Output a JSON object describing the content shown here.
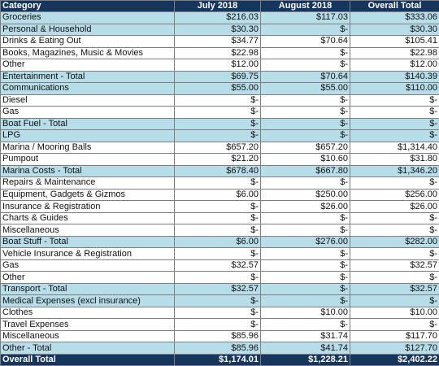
{
  "headers": [
    "Category",
    "July 2018",
    "August 2018",
    "Overall Total"
  ],
  "rows": [
    {
      "hl": true,
      "cells": [
        "Groceries",
        "$216.03",
        "$117.03",
        "$333.06"
      ]
    },
    {
      "hl": true,
      "cells": [
        "Personal & Household",
        "$30.30",
        "$-",
        "$30.30"
      ]
    },
    {
      "hl": false,
      "cells": [
        "Drinks & Eating Out",
        "$34.77",
        "$70.64",
        "$105.41"
      ]
    },
    {
      "hl": false,
      "cells": [
        "Books, Magazines, Music & Movies",
        "$22.98",
        "$-",
        "$22.98"
      ]
    },
    {
      "hl": false,
      "cells": [
        "Other",
        "$12.00",
        "$-",
        "$12.00"
      ]
    },
    {
      "hl": true,
      "cells": [
        "Entertainment - Total",
        "$69.75",
        "$70.64",
        "$140.39"
      ]
    },
    {
      "hl": true,
      "cells": [
        "Communications",
        "$55.00",
        "$55.00",
        "$110.00"
      ]
    },
    {
      "hl": false,
      "cells": [
        "Diesel",
        "$-",
        "$-",
        "$-"
      ]
    },
    {
      "hl": false,
      "cells": [
        "Gas",
        "$-",
        "$-",
        "$-"
      ]
    },
    {
      "hl": true,
      "cells": [
        "Boat Fuel - Total",
        "$-",
        "$-",
        "$-"
      ]
    },
    {
      "hl": true,
      "cells": [
        "LPG",
        "$-",
        "$-",
        "$-"
      ]
    },
    {
      "hl": false,
      "cells": [
        "Marina / Mooring Balls",
        "$657.20",
        "$657.20",
        "$1,314.40"
      ]
    },
    {
      "hl": false,
      "cells": [
        "Pumpout",
        "$21.20",
        "$10.60",
        "$31.80"
      ]
    },
    {
      "hl": true,
      "cells": [
        "Marina Costs - Total",
        "$678.40",
        "$667.80",
        "$1,346.20"
      ]
    },
    {
      "hl": false,
      "cells": [
        "Repairs & Maintenance",
        "$-",
        "$-",
        "$-"
      ]
    },
    {
      "hl": false,
      "cells": [
        "Equipment, Gadgets & Gizmos",
        "$6.00",
        "$250.00",
        "$256.00"
      ]
    },
    {
      "hl": false,
      "cells": [
        "Insurance & Registration",
        "$-",
        "$26.00",
        "$26.00"
      ]
    },
    {
      "hl": false,
      "cells": [
        "Charts & Guides",
        "$-",
        "$-",
        "$-"
      ]
    },
    {
      "hl": false,
      "cells": [
        "Miscellaneous",
        "$-",
        "$-",
        "$-"
      ]
    },
    {
      "hl": true,
      "cells": [
        "Boat Stuff - Total",
        "$6.00",
        "$276.00",
        "$282.00"
      ]
    },
    {
      "hl": false,
      "cells": [
        "Vehicle Insurance & Registration",
        "$-",
        "$-",
        "$-"
      ]
    },
    {
      "hl": false,
      "cells": [
        "Gas",
        "$32.57",
        "$-",
        "$32.57"
      ]
    },
    {
      "hl": false,
      "cells": [
        "Other",
        "$-",
        "$-",
        "$-"
      ]
    },
    {
      "hl": true,
      "cells": [
        "Transport - Total",
        "$32.57",
        "$-",
        "$32.57"
      ]
    },
    {
      "hl": true,
      "cells": [
        "Medical Expenses (excl insurance)",
        "$-",
        "$-",
        "$-"
      ]
    },
    {
      "hl": false,
      "cells": [
        "Clothes",
        "$-",
        "$10.00",
        "$10.00"
      ]
    },
    {
      "hl": false,
      "cells": [
        "Travel Expenses",
        "$-",
        "$-",
        "$-"
      ]
    },
    {
      "hl": false,
      "cells": [
        "Miscellaneous",
        "$85.96",
        "$31.74",
        "$117.70"
      ]
    },
    {
      "hl": true,
      "cells": [
        "Other - Total",
        "$85.96",
        "$41.74",
        "$127.70"
      ]
    }
  ],
  "total": [
    "Overall Total",
    "$1,174.01",
    "$1,228.21",
    "$2,402.22"
  ],
  "colors": {
    "header_bg": "#17365d",
    "highlight_bg": "#b7dde8",
    "border": "#7f7f7f"
  }
}
